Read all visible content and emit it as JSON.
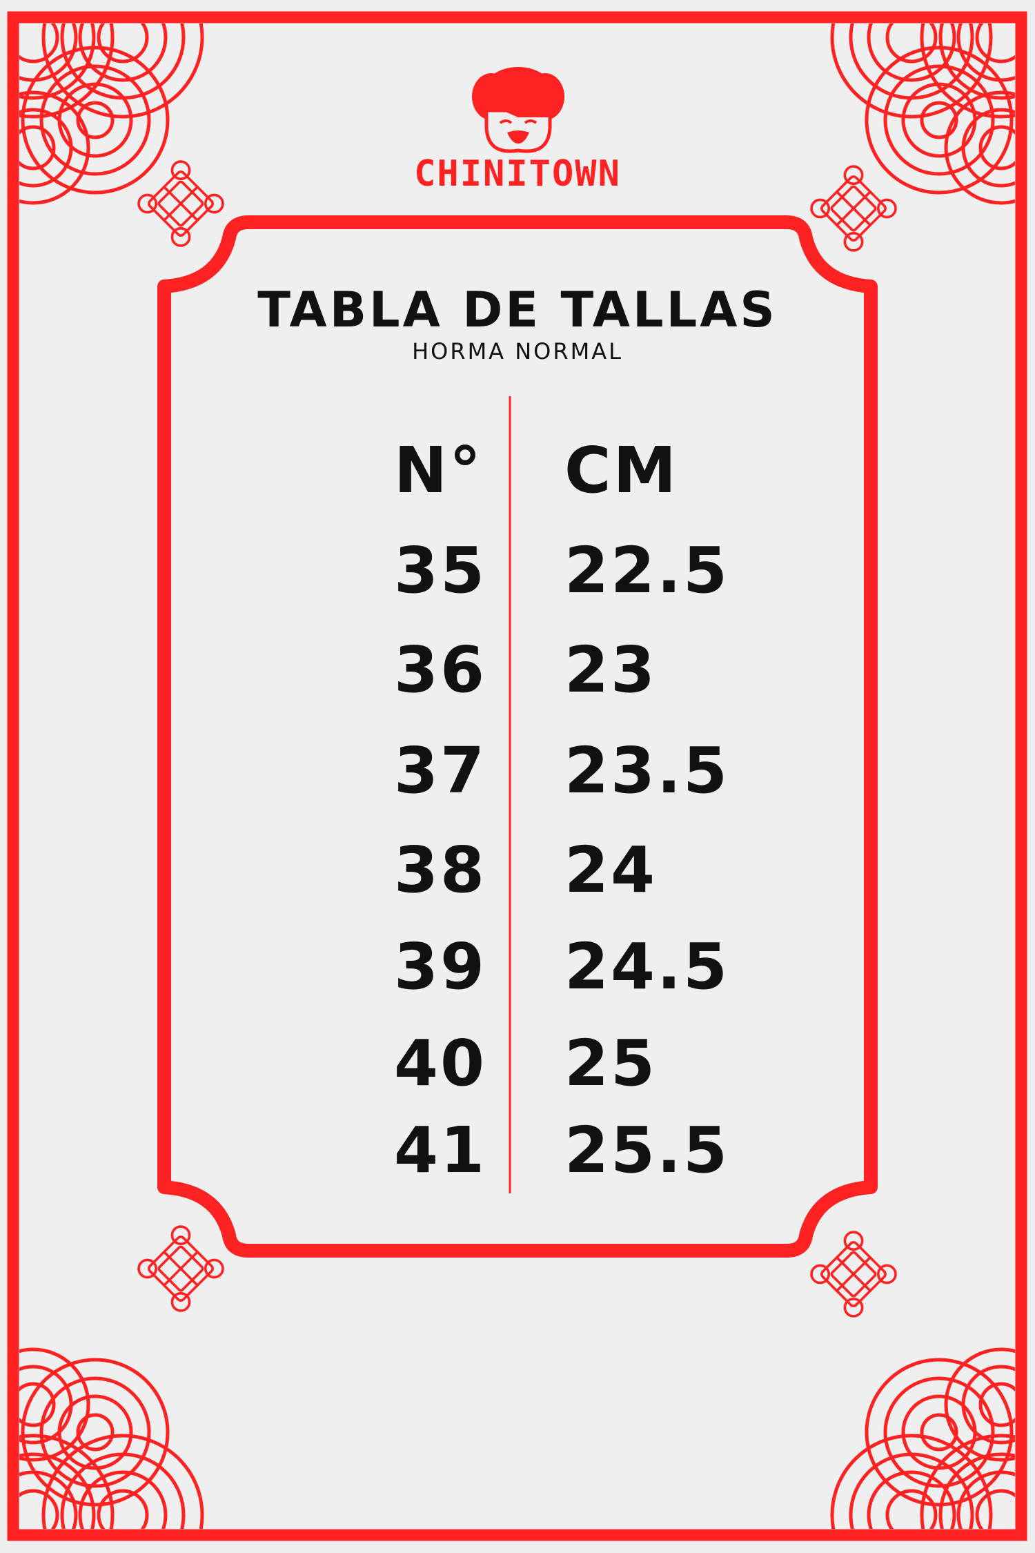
{
  "brand": {
    "name": "CHINITOWN"
  },
  "title": "TABLA DE TALLAS",
  "subtitle": "HORMA NORMAL",
  "colors": {
    "accent": "#ff2222",
    "background": "#efefef",
    "text": "#111111"
  },
  "table": {
    "headers": [
      "N°",
      "CM"
    ],
    "rows": [
      [
        "35",
        "22.5"
      ],
      [
        "36",
        "23"
      ],
      [
        "37",
        "23.5"
      ],
      [
        "38",
        "24"
      ],
      [
        "39",
        "24.5"
      ],
      [
        "40",
        "25"
      ],
      [
        "41",
        "25.5"
      ]
    ]
  }
}
